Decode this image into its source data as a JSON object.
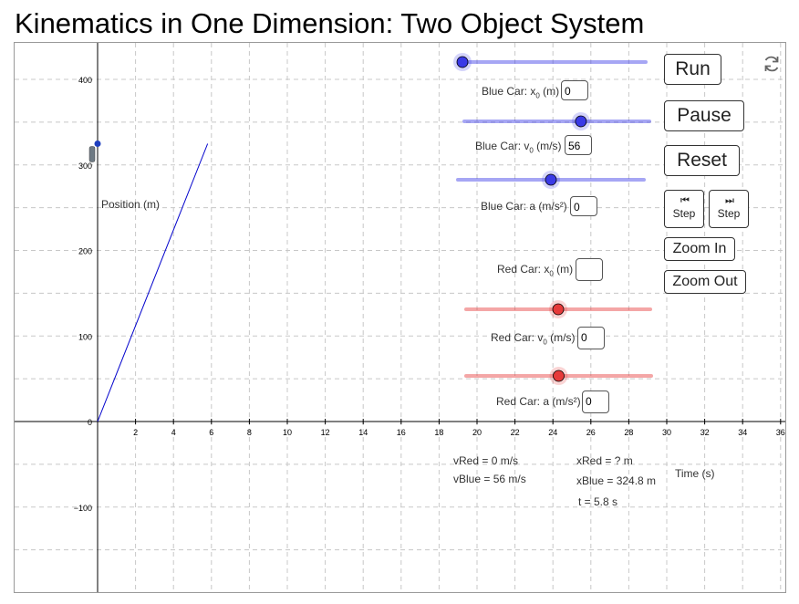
{
  "page": {
    "title": "Kinematics in One Dimension: Two Object System"
  },
  "graph": {
    "ylabel": "Position (m)",
    "xlabel": "Time (s)",
    "x_ticks": [
      "2",
      "4",
      "6",
      "8",
      "10",
      "12",
      "14",
      "16",
      "18",
      "20",
      "22",
      "24",
      "26",
      "28",
      "30",
      "32",
      "34",
      "36"
    ],
    "y_ticks": [
      "400",
      "300",
      "200",
      "100",
      "0",
      "−100"
    ]
  },
  "chart_data": {
    "type": "line",
    "series": [
      {
        "x": [
          0,
          5.8
        ],
        "y": [
          0,
          324.8
        ],
        "color": "#0000cc"
      }
    ],
    "xlim": [
      0,
      36.2
    ],
    "ylim": [
      -200,
      440
    ],
    "grid": true
  },
  "controls": {
    "blue": {
      "x0_label": "Blue Car: x",
      "x0_unit": " (m)",
      "x0_value": "0",
      "v0_label": "Blue Car: v",
      "v0_unit": " (m/s)",
      "v0_value": "56",
      "a_label": "Blue Car: a  (m/s²)",
      "a_value": "0",
      "color": "#0000ff",
      "x0_slider": 0.0,
      "v0_slider": 0.63,
      "a_slider": 0.5
    },
    "red": {
      "x0_label": "Red Car: x",
      "x0_unit": " (m)",
      "x0_value": "",
      "v0_label": "Red Car: v",
      "v0_unit": " (m/s)",
      "v0_value": "0",
      "a_label": "Red Car: a (m/s²)",
      "a_value": "0",
      "color": "#ff0000",
      "v0_slider": 0.5,
      "a_slider": 0.5
    },
    "subscript": "0"
  },
  "buttons": {
    "run": "Run",
    "pause": "Pause",
    "reset": "Reset",
    "step_back": "Step",
    "step_forward": "Step",
    "zoom_in": "Zoom In",
    "zoom_out": "Zoom Out",
    "step_back_icon": "⏮",
    "step_forward_icon": "⏭"
  },
  "readouts": {
    "vred": "vRed = 0 m/s",
    "vblue": "vBlue = 56 m/s",
    "xred": "xRed = ? m",
    "xblue": "xBlue = 324.8 m",
    "t": "t = 5.8 s"
  },
  "icons": {
    "refresh": "refresh-icon",
    "car": "car-icon"
  }
}
